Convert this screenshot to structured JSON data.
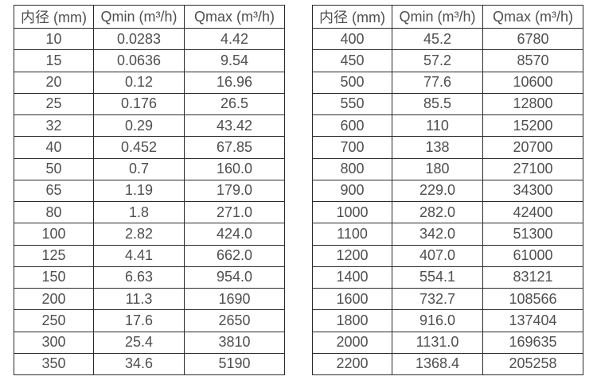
{
  "colors": {
    "background": "#ffffff",
    "table_border": "#2b2b2b",
    "table_text": "#4f4f4f"
  },
  "chart_data": [
    {
      "type": "table",
      "name": "flow-rate-table-small-diameters",
      "headers": [
        "内径 (mm)",
        "Qmin (m³/h)",
        "Qmax (m³/h)"
      ],
      "rows": [
        [
          "10",
          "0.0283",
          "4.42"
        ],
        [
          "15",
          "0.0636",
          "9.54"
        ],
        [
          "20",
          "0.12",
          "16.96"
        ],
        [
          "25",
          "0.176",
          "26.5"
        ],
        [
          "32",
          "0.29",
          "43.42"
        ],
        [
          "40",
          "0.452",
          "67.85"
        ],
        [
          "50",
          "0.7",
          "160.0"
        ],
        [
          "65",
          "1.19",
          "179.0"
        ],
        [
          "80",
          "1.8",
          "271.0"
        ],
        [
          "100",
          "2.82",
          "424.0"
        ],
        [
          "125",
          "4.41",
          "662.0"
        ],
        [
          "150",
          "6.63",
          "954.0"
        ],
        [
          "200",
          "11.3",
          "1690"
        ],
        [
          "250",
          "17.6",
          "2650"
        ],
        [
          "300",
          "25.4",
          "3810"
        ],
        [
          "350",
          "34.6",
          "5190"
        ]
      ]
    },
    {
      "type": "table",
      "name": "flow-rate-table-large-diameters",
      "headers": [
        "内径 (mm)",
        "Qmin (m³/h)",
        "Qmax (m³/h)"
      ],
      "rows": [
        [
          "400",
          "45.2",
          "6780"
        ],
        [
          "450",
          "57.2",
          "8570"
        ],
        [
          "500",
          "77.6",
          "10600"
        ],
        [
          "550",
          "85.5",
          "12800"
        ],
        [
          "600",
          "110",
          "15200"
        ],
        [
          "700",
          "138",
          "20700"
        ],
        [
          "800",
          "180",
          "27100"
        ],
        [
          "900",
          "229.0",
          "34300"
        ],
        [
          "1000",
          "282.0",
          "42400"
        ],
        [
          "1100",
          "342.0",
          "51300"
        ],
        [
          "1200",
          "407.0",
          "61000"
        ],
        [
          "1400",
          "554.1",
          "83121"
        ],
        [
          "1600",
          "732.7",
          "108566"
        ],
        [
          "1800",
          "916.0",
          "137404"
        ],
        [
          "2000",
          "1131.0",
          "169635"
        ],
        [
          "2200",
          "1368.4",
          "205258"
        ]
      ]
    }
  ]
}
